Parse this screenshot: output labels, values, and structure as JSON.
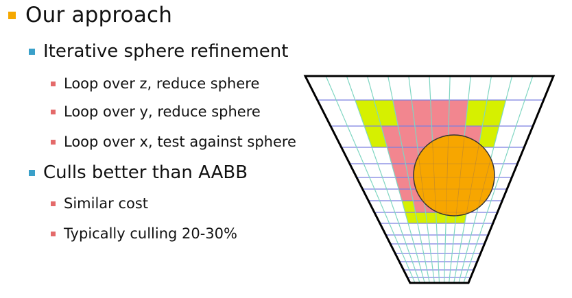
{
  "slide": {
    "bullets": [
      {
        "level": 1,
        "text": "Our approach"
      },
      {
        "level": 2,
        "text": "Iterative sphere refinement"
      },
      {
        "level": 3,
        "text": "Loop over z, reduce sphere"
      },
      {
        "level": 3,
        "text": "Loop over y, reduce sphere"
      },
      {
        "level": 3,
        "text": "Loop over x, test against sphere"
      },
      {
        "level": 2,
        "text": "Culls better than AABB"
      },
      {
        "level": 3,
        "text": "Similar cost"
      },
      {
        "level": 3,
        "text": "Typically culling 20-30%"
      }
    ]
  },
  "diagram": {
    "colors": {
      "outline": "#000000",
      "grid_horizontal": "#7a7fe0",
      "grid_vertical": "#7fd6c2",
      "partial_tile": "#d6f000",
      "tested_tile": "#f2868f",
      "sphere": "#f7a600",
      "sphere_stroke": "#333333"
    },
    "grid_columns": 12,
    "grid_rows": 12
  }
}
